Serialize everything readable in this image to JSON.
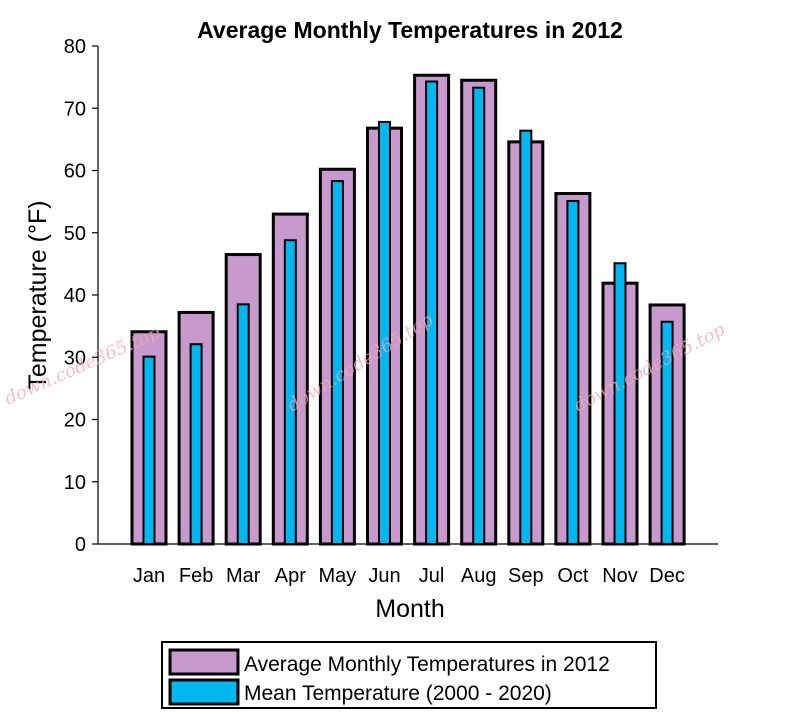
{
  "chart_data": {
    "type": "bar",
    "title": "Average Monthly Temperatures in 2012",
    "xlabel": "Month",
    "ylabel": "Temperature (°F)",
    "categories": [
      "Jan",
      "Feb",
      "Mar",
      "Apr",
      "May",
      "Jun",
      "Jul",
      "Aug",
      "Sep",
      "Oct",
      "Nov",
      "Dec"
    ],
    "series": [
      {
        "name": "Average Monthly Temperatures in 2012",
        "values": [
          34.1,
          37.2,
          46.5,
          53,
          60.2,
          66.8,
          75.3,
          74.5,
          64.6,
          56.3,
          41.9,
          38.4
        ],
        "color": "#c899cc"
      },
      {
        "name": "Mean Temperature (2000 - 2020)",
        "values": [
          30.1,
          32.1,
          38.5,
          48.8,
          58.3,
          67.8,
          74.3,
          73.3,
          66.4,
          55.1,
          45.1,
          35.7
        ],
        "color": "#00b7ef"
      }
    ],
    "yticks": [
      0,
      10,
      20,
      30,
      40,
      50,
      60,
      70,
      80
    ],
    "ylim": [
      0,
      80
    ],
    "grid": false,
    "legend_position": "bottom"
  },
  "watermarks": [
    "down.code365.top",
    "down.code365.top",
    "down.code365.top"
  ]
}
